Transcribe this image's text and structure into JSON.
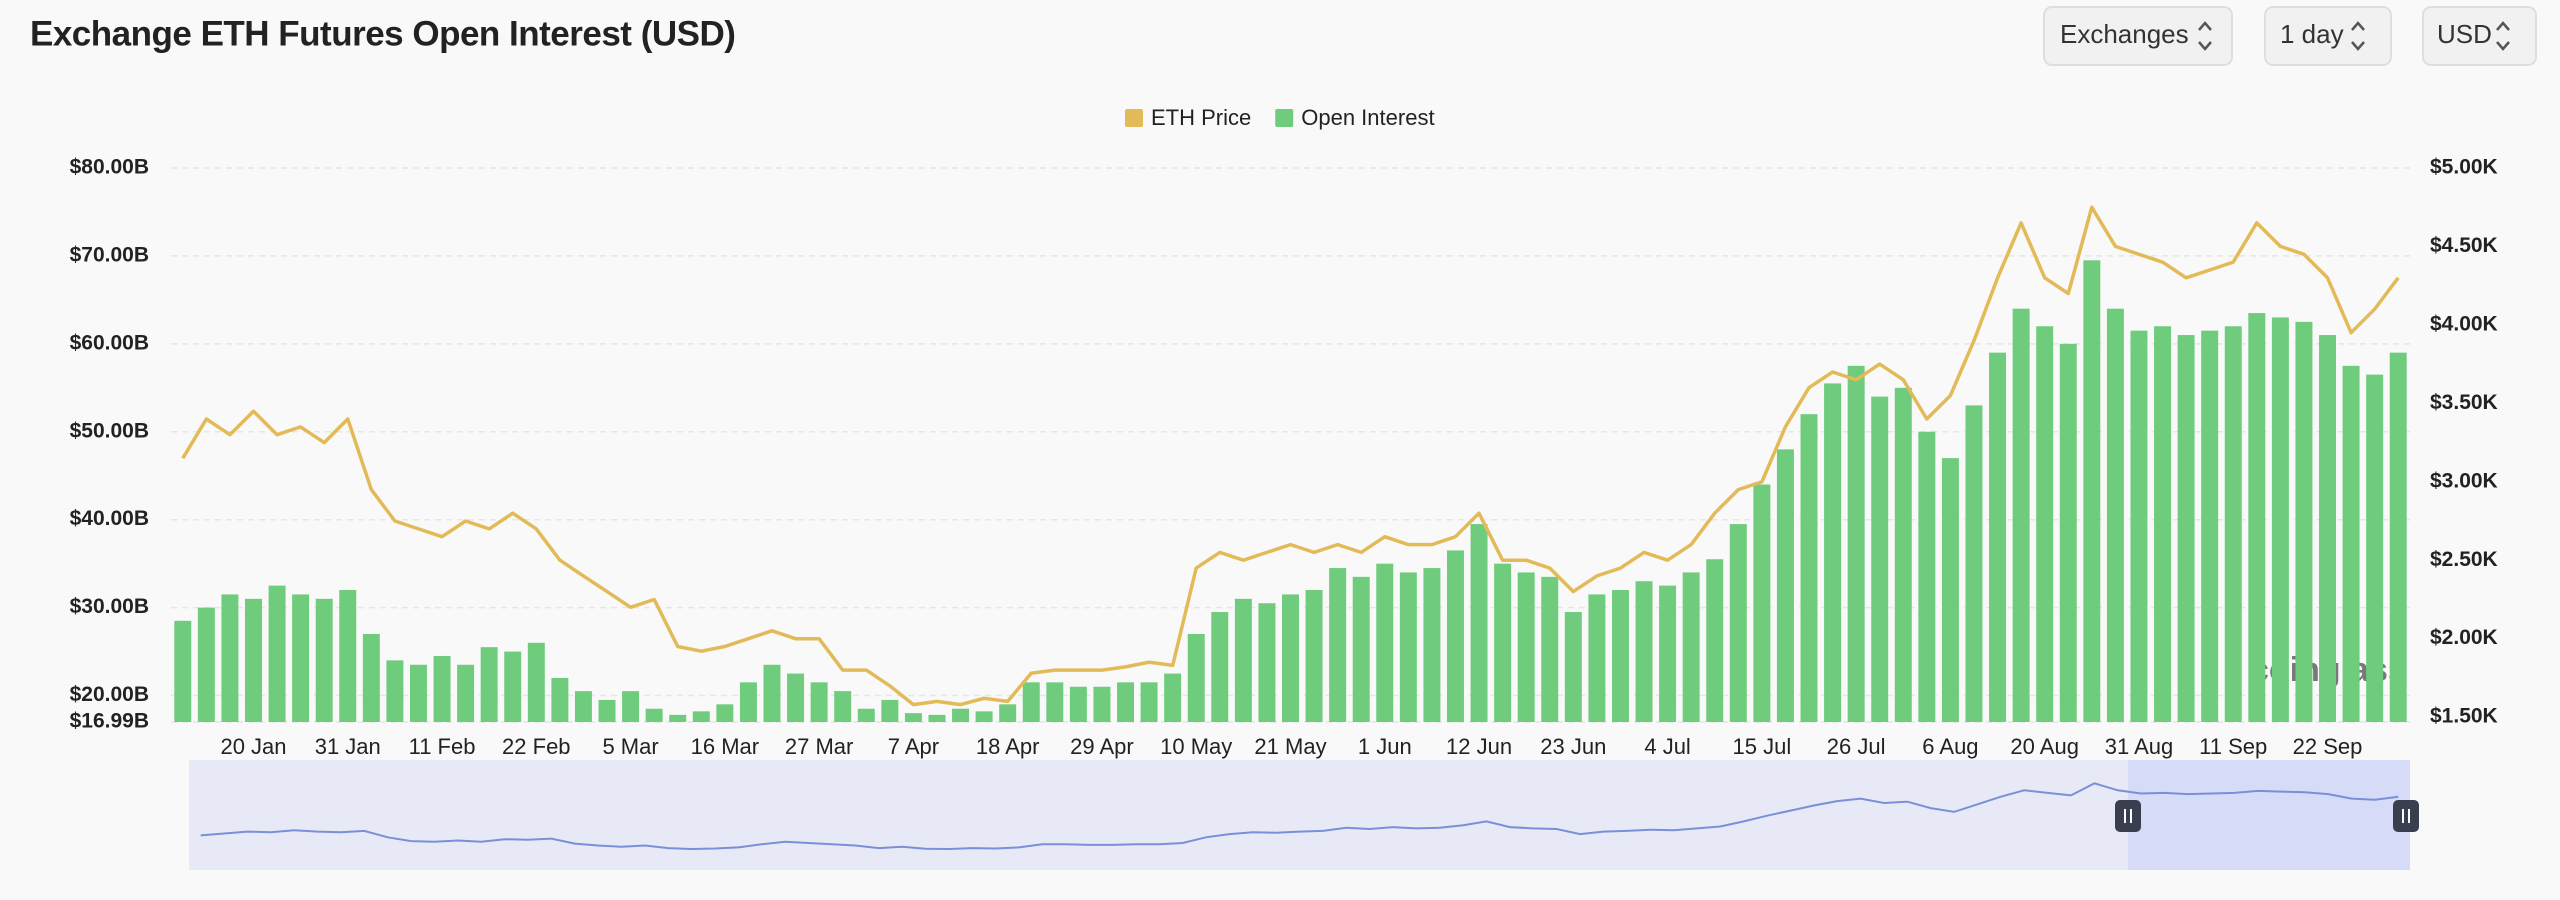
{
  "chart_data": {
    "type": "bar",
    "title": "Exchange ETH Futures Open Interest (USD)",
    "watermark": "coinglass",
    "categories": [
      null,
      null,
      null,
      "20 Jan",
      null,
      null,
      null,
      "31 Jan",
      null,
      null,
      null,
      "11 Feb",
      null,
      null,
      null,
      "22 Feb",
      null,
      null,
      null,
      "5 Mar",
      null,
      null,
      null,
      "16 Mar",
      null,
      null,
      null,
      "27 Mar",
      null,
      null,
      null,
      "7 Apr",
      null,
      null,
      null,
      "18 Apr",
      null,
      null,
      null,
      "29 Apr",
      null,
      null,
      null,
      "10 May",
      null,
      null,
      null,
      "21 May",
      null,
      null,
      null,
      "1 Jun",
      null,
      null,
      null,
      "12 Jun",
      null,
      null,
      null,
      "23 Jun",
      null,
      null,
      null,
      "4 Jul",
      null,
      null,
      null,
      "15 Jul",
      null,
      null,
      null,
      "26 Jul",
      null,
      null,
      null,
      "6 Aug",
      null,
      null,
      null,
      "20 Aug",
      null,
      null,
      null,
      "31 Aug",
      null,
      null,
      null,
      "11 Sep",
      null,
      null,
      null,
      "22 Sep",
      null,
      null,
      null
    ],
    "series": [
      {
        "name": "ETH Price",
        "type": "line",
        "axis": "y2",
        "color": "#e2ba58",
        "values": [
          3150,
          3400,
          3300,
          3450,
          3300,
          3350,
          3250,
          3400,
          2950,
          2750,
          2700,
          2650,
          2750,
          2700,
          2800,
          2700,
          2500,
          2400,
          2300,
          2200,
          2250,
          1950,
          1920,
          1950,
          2000,
          2050,
          2000,
          2000,
          1800,
          1800,
          1700,
          1580,
          1600,
          1580,
          1620,
          1600,
          1780,
          1800,
          1800,
          1800,
          1820,
          1850,
          1830,
          2450,
          2550,
          2500,
          2550,
          2600,
          2550,
          2600,
          2550,
          2650,
          2600,
          2600,
          2650,
          2800,
          2500,
          2500,
          2450,
          2300,
          2400,
          2450,
          2550,
          2500,
          2600,
          2800,
          2950,
          3000,
          3350,
          3600,
          3700,
          3650,
          3750,
          3650,
          3400,
          3550,
          3900,
          4300,
          4650,
          4300,
          4200,
          4750,
          4500,
          4450,
          4400,
          4300,
          4350,
          4400,
          4650,
          4500,
          4450,
          4300,
          3950,
          4100,
          4300
        ]
      },
      {
        "name": "Open Interest",
        "type": "bar",
        "axis": "y",
        "color": "#6fcc7c",
        "values": [
          28.5,
          30,
          31.5,
          31,
          32.5,
          31.5,
          31,
          32,
          27,
          24,
          23.5,
          24.5,
          23.5,
          25.5,
          25,
          26,
          22,
          20.5,
          19.5,
          20.5,
          18.5,
          17.8,
          18.2,
          19,
          21.5,
          23.5,
          22.5,
          21.5,
          20.5,
          18.5,
          19.5,
          18,
          17.8,
          18.5,
          18.2,
          19,
          21.5,
          21.5,
          21,
          21,
          21.5,
          21.5,
          22.5,
          27,
          29.5,
          31,
          30.5,
          31.5,
          32,
          34.5,
          33.5,
          35,
          34,
          34.5,
          36.5,
          39.5,
          35,
          34,
          33.5,
          29.5,
          31.5,
          32,
          33,
          32.5,
          34,
          35.5,
          39.5,
          44,
          48,
          52,
          55.5,
          57.5,
          54,
          55,
          50,
          47,
          53,
          59,
          64,
          62,
          60,
          69.5,
          64,
          61.5,
          62,
          61,
          61.5,
          62,
          63.5,
          63,
          62.5,
          61,
          57.5,
          56.5,
          59
        ]
      }
    ],
    "ylim": [
      16.99,
      80
    ],
    "yticks": [
      {
        "value": 16.99,
        "label": "$16.99B"
      },
      {
        "value": 20,
        "label": "$20.00B"
      },
      {
        "value": 30,
        "label": "$30.00B"
      },
      {
        "value": 40,
        "label": "$40.00B"
      },
      {
        "value": 50,
        "label": "$50.00B"
      },
      {
        "value": 60,
        "label": "$60.00B"
      },
      {
        "value": 70,
        "label": "$70.00B"
      },
      {
        "value": 80,
        "label": "$80.00B"
      }
    ],
    "y2lim": [
      1469,
      5000
    ],
    "y2ticks": [
      {
        "value": 1500,
        "label": "$1.50K"
      },
      {
        "value": 2000,
        "label": "$2.00K"
      },
      {
        "value": 2500,
        "label": "$2.50K"
      },
      {
        "value": 3000,
        "label": "$3.00K"
      },
      {
        "value": 3500,
        "label": "$3.50K"
      },
      {
        "value": 4000,
        "label": "$4.00K"
      },
      {
        "value": 4500,
        "label": "$4.50K"
      },
      {
        "value": 5000,
        "label": "$5.00K"
      }
    ],
    "grid": true,
    "legend": "top"
  },
  "controls": [
    "Exchanges",
    "1 day",
    "USD"
  ]
}
